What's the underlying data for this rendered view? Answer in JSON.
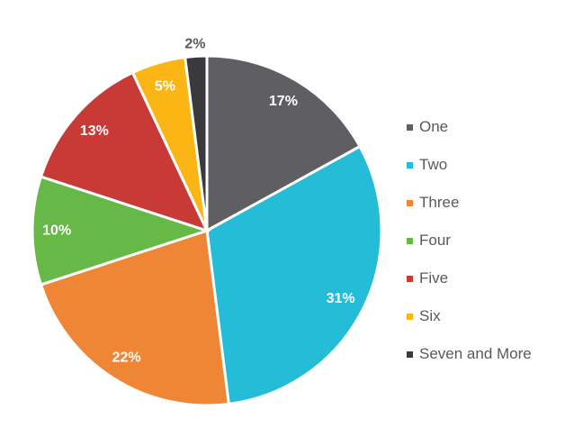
{
  "chart_data": {
    "type": "pie",
    "title": "",
    "categories": [
      "One",
      "Two",
      "Three",
      "Four",
      "Five",
      "Six",
      "Seven and More"
    ],
    "values": [
      17,
      31,
      22,
      10,
      13,
      5,
      2
    ],
    "labels": [
      "17%",
      "31%",
      "22%",
      "10%",
      "13%",
      "5%",
      "2%"
    ],
    "colors": [
      "#5f5f63",
      "#24bcd6",
      "#ef8636",
      "#66b946",
      "#c83a35",
      "#fbb515",
      "#3a3a3c"
    ],
    "start_angle": "top, clockwise",
    "legend_position": "right"
  }
}
